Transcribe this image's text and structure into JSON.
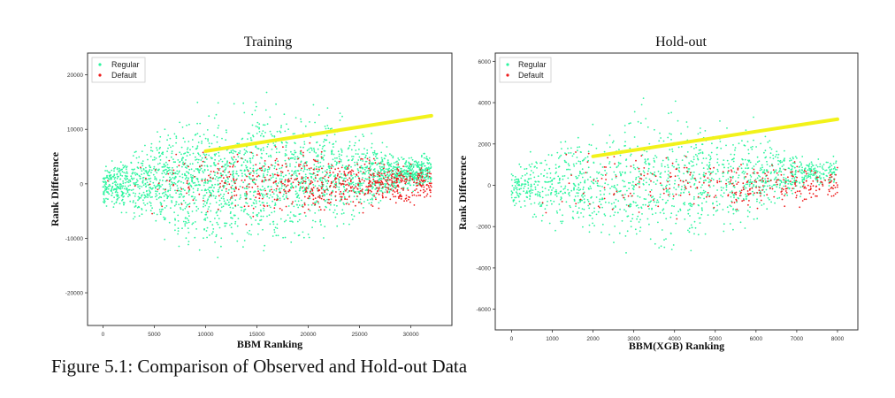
{
  "figure": {
    "caption": "Figure 5.1: Comparison of Observed and Hold-out Data"
  },
  "colors": {
    "regular": "#2ef5a0",
    "default": "#ee1c1c",
    "trend": "#f2f21a",
    "axis": "#222222"
  },
  "chart_data": [
    {
      "type": "scatter",
      "title": "Training",
      "xlabel": "BBM Ranking",
      "ylabel": "Rank Difference",
      "xlim": [
        -1500,
        34000
      ],
      "ylim": [
        -26000,
        24000
      ],
      "xticks": [
        0,
        5000,
        10000,
        15000,
        20000,
        25000,
        30000
      ],
      "yticks": [
        -20000,
        -10000,
        0,
        10000,
        20000
      ],
      "legend": "top-left",
      "series": [
        {
          "name": "Regular",
          "color": "#2ef5a0"
        },
        {
          "name": "Default",
          "color": "#ee1c1c"
        }
      ],
      "trend_line": {
        "x": [
          10000,
          32000
        ],
        "y": [
          6000,
          12500
        ]
      }
    },
    {
      "type": "scatter",
      "title": "Hold-out",
      "xlabel": "BBM(XGB) Ranking",
      "ylabel": "Rank Difference",
      "xlim": [
        -400,
        8500
      ],
      "ylim": [
        -7000,
        6400
      ],
      "xticks": [
        0,
        1000,
        2000,
        3000,
        4000,
        5000,
        6000,
        7000,
        8000
      ],
      "yticks": [
        -6000,
        -4000,
        -2000,
        0,
        2000,
        4000,
        6000
      ],
      "legend": "top-left",
      "series": [
        {
          "name": "Regular",
          "color": "#2ef5a0"
        },
        {
          "name": "Default",
          "color": "#ee1c1c"
        }
      ],
      "trend_line": {
        "x": [
          2000,
          8000
        ],
        "y": [
          1400,
          3200
        ]
      }
    }
  ]
}
